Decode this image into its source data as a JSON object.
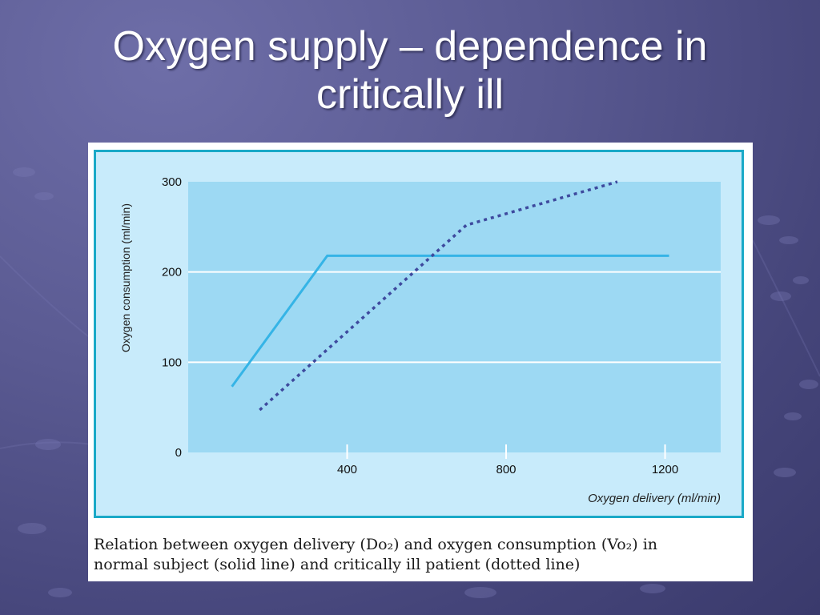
{
  "slide": {
    "title_line1": "Oxygen supply – dependence in",
    "title_line2": "critically ill"
  },
  "figure": {
    "caption_line1": "Relation between oxygen delivery (Do₂) and oxygen consumption (Vo₂) in",
    "caption_line2": "normal subject (solid line) and critically ill patient (dotted line)"
  },
  "colors": {
    "slide_background": "#5a5a92",
    "plot_area": "#9dd9f3",
    "frame_background": "#c8ebfb",
    "frame_border": "#1aa9c7",
    "solid_line": "#35b4e6",
    "dotted_line": "#3e4a9e",
    "gridline": "#ffffff"
  },
  "chart_data": {
    "type": "line",
    "xlabel": "Oxygen delivery (ml/min)",
    "ylabel": "Oxygen consumption (ml/min)",
    "xlim": [
      0,
      1340
    ],
    "ylim": [
      0,
      300
    ],
    "x_ticks": [
      400,
      800,
      1200
    ],
    "x_tick_labels": [
      "400",
      "800",
      "1200"
    ],
    "y_ticks": [
      0,
      100,
      200,
      300
    ],
    "y_tick_labels": [
      "0",
      "100",
      "200",
      "300"
    ],
    "grid": "horizontal at 100 and 200",
    "series": [
      {
        "style": "solid",
        "points": [
          [
            110,
            73
          ],
          [
            350,
            218
          ],
          [
            1210,
            218
          ]
        ]
      },
      {
        "style": "dotted",
        "points": [
          [
            180,
            47
          ],
          [
            700,
            252
          ],
          [
            1080,
            300
          ]
        ]
      }
    ]
  }
}
